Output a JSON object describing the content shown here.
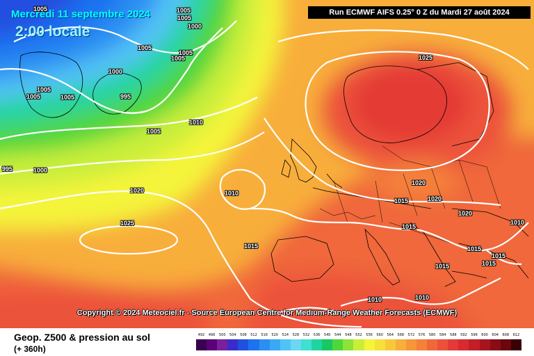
{
  "header": {
    "date_title": "Mercredi 11 septembre 2024",
    "time_title": "2:00 locale",
    "run_info": "Run ECMWF AIFS 0.25° 0 Z du Mardi 27 août 2024"
  },
  "copyright": "Copyright © 2024 Meteociel.fr - Source European Centre for Medium-Range Weather Forecasts (ECMWF)",
  "legend": {
    "title": "Geop. Z500 & pression au sol",
    "lead_time": "(+ 360h)",
    "scale_values": [
      "492",
      "496",
      "500",
      "504",
      "508",
      "512",
      "516",
      "520",
      "524",
      "528",
      "532",
      "536",
      "540",
      "544",
      "548",
      "552",
      "556",
      "560",
      "564",
      "568",
      "572",
      "576",
      "580",
      "584",
      "588",
      "592",
      "596",
      "600",
      "604",
      "608",
      "612"
    ],
    "scale_colors": [
      "#3b0050",
      "#5a0078",
      "#7a1fa0",
      "#3a2cc8",
      "#2050e0",
      "#1c72f0",
      "#2b8ff2",
      "#3aa8f4",
      "#52c2f6",
      "#6ad8f2",
      "#3ee0d0",
      "#20d4a0",
      "#18c860",
      "#4fd63a",
      "#8ee23a",
      "#c8ee3a",
      "#f4f43a",
      "#f6e03a",
      "#f8c83a",
      "#f8ae3a",
      "#f6963a",
      "#f4803a",
      "#f0683a",
      "#ec523a",
      "#e43a36",
      "#d82a30",
      "#c41e28",
      "#a8141e",
      "#8a0c14",
      "#6a060e",
      "#3a0006"
    ]
  },
  "isobar_labels": [
    {
      "id": "p1005-a",
      "text": "1005"
    },
    {
      "id": "p1005-b",
      "text": "1005"
    },
    {
      "id": "p1005-c",
      "text": "1005"
    },
    {
      "id": "p1000-a",
      "text": "1000"
    },
    {
      "id": "p1005-d",
      "text": "1005"
    },
    {
      "id": "p1005-e",
      "text": "1005"
    },
    {
      "id": "p1005-f",
      "text": "1005"
    },
    {
      "id": "p1000-b",
      "text": "1000"
    },
    {
      "id": "p1005-g",
      "text": "1005"
    },
    {
      "id": "p1005-h",
      "text": "1005"
    },
    {
      "id": "p1005-i",
      "text": "1005"
    },
    {
      "id": "p995-a",
      "text": "995"
    },
    {
      "id": "p1005-j",
      "text": "1005"
    },
    {
      "id": "p1010-a",
      "text": "1010"
    },
    {
      "id": "p995-b",
      "text": "995"
    },
    {
      "id": "p1000-c",
      "text": "1000"
    },
    {
      "id": "p1020-a",
      "text": "1020"
    },
    {
      "id": "p1010-b",
      "text": "1010"
    },
    {
      "id": "p1025-a",
      "text": "1025"
    },
    {
      "id": "p1015-a",
      "text": "1015"
    },
    {
      "id": "p1025-b",
      "text": "1025"
    },
    {
      "id": "p1020-b",
      "text": "1020"
    },
    {
      "id": "p1015-b",
      "text": "1015"
    },
    {
      "id": "p1020-c",
      "text": "1020"
    },
    {
      "id": "p1015-c",
      "text": "1015"
    },
    {
      "id": "p1020-d",
      "text": "1020"
    },
    {
      "id": "p1010-c",
      "text": "1010"
    },
    {
      "id": "p1015-d",
      "text": "1015"
    },
    {
      "id": "p1015-e",
      "text": "1015"
    },
    {
      "id": "p1015-f",
      "text": "1015"
    },
    {
      "id": "p1015-g",
      "text": "1015"
    },
    {
      "id": "p1010-d",
      "text": "1010"
    },
    {
      "id": "p1010-e",
      "text": "1010"
    }
  ]
}
